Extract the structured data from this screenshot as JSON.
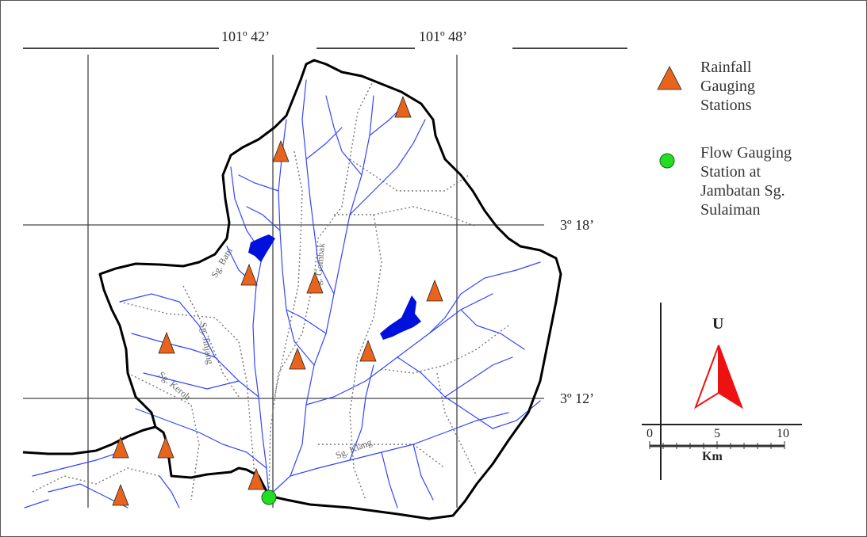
{
  "map": {
    "longitude_labels": [
      "101º 42’",
      "101º 48’"
    ],
    "latitude_labels": [
      "3º 18’",
      "3º 12’"
    ],
    "river_labels": [
      "Sg. Batu",
      "Sg. Gombak",
      "Sg. Jinjang",
      "Sg. Keroh",
      "Sg. Klang"
    ]
  },
  "legend": {
    "rainfall_label": "Rainfall Gauging Stations",
    "flow_label": "Flow Gauging Station at Jambatan Sg. Sulaiman",
    "rainfall_color": "#e8641c",
    "flow_color": "#22dd22"
  },
  "north_arrow": {
    "label": "U",
    "color": "#ee1111"
  },
  "scale_bar": {
    "ticks": [
      "0",
      "5",
      "10"
    ],
    "unit": "Km"
  },
  "colors": {
    "river": "#3344ff",
    "reservoir": "#0011dd",
    "boundary": "#000000",
    "grid": "#444444"
  }
}
